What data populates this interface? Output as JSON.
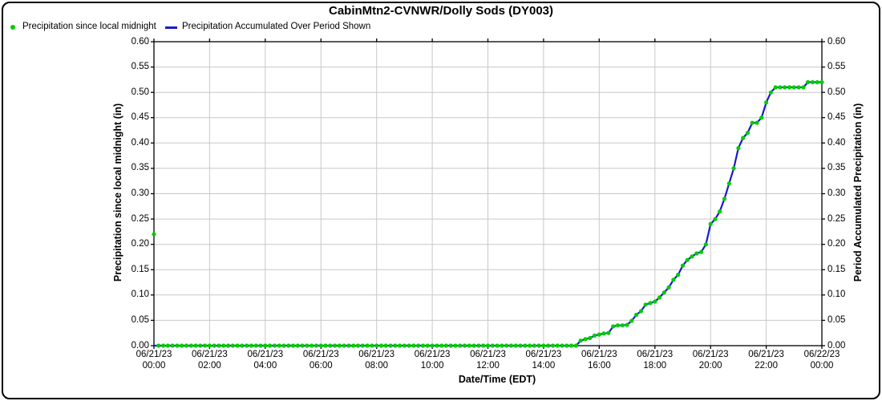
{
  "title": "CabinMtn2-CVNWR/Dolly Sods (DY003)",
  "legend": [
    {
      "label": "Precipitation since local midnight",
      "marker": "dot",
      "color": "#00cc00"
    },
    {
      "label": "Precipitation Accumulated Over Period Shown",
      "marker": "line",
      "color": "#1a1acc"
    }
  ],
  "axes": {
    "x": {
      "title": "Date/Time (EDT)",
      "tick_labels": [
        [
          "06/21/23",
          "00:00"
        ],
        [
          "06/21/23",
          "02:00"
        ],
        [
          "06/21/23",
          "04:00"
        ],
        [
          "06/21/23",
          "06:00"
        ],
        [
          "06/21/23",
          "08:00"
        ],
        [
          "06/21/23",
          "10:00"
        ],
        [
          "06/21/23",
          "12:00"
        ],
        [
          "06/21/23",
          "14:00"
        ],
        [
          "06/21/23",
          "16:00"
        ],
        [
          "06/21/23",
          "18:00"
        ],
        [
          "06/21/23",
          "20:00"
        ],
        [
          "06/21/23",
          "22:00"
        ],
        [
          "06/22/23",
          "00:00"
        ]
      ]
    },
    "y_left": {
      "title": "Precipitation since local midnight (in)",
      "min": 0.0,
      "max": 0.6,
      "step": 0.05,
      "tick_labels": [
        "0.00",
        "0.05",
        "0.10",
        "0.15",
        "0.20",
        "0.25",
        "0.30",
        "0.35",
        "0.40",
        "0.45",
        "0.50",
        "0.55",
        "0.60"
      ]
    },
    "y_right": {
      "title": "Period Accumulated Precipitation (in)",
      "min": 0.0,
      "max": 0.6,
      "step": 0.05,
      "tick_labels": [
        "0.00",
        "0.05",
        "0.10",
        "0.15",
        "0.20",
        "0.25",
        "0.30",
        "0.35",
        "0.40",
        "0.45",
        "0.50",
        "0.55",
        "0.60"
      ]
    }
  },
  "colors": {
    "grid": "#c8c8c8",
    "axis": "#000000",
    "scatter": "#00cc00",
    "line": "#1a1acc"
  },
  "chart_data": {
    "type": "line",
    "title": "CabinMtn2-CVNWR/Dolly Sods (DY003)",
    "xlabel": "Date/Time (EDT)",
    "ylabel_left": "Precipitation since local midnight (in)",
    "ylabel_right": "Period Accumulated Precipitation (in)",
    "ylim": [
      0.0,
      0.6
    ],
    "grid": true,
    "legend_position": "top-left",
    "x_start": "06/21/23 00:00",
    "x_end": "06/22/23 00:00",
    "x_step_minutes": 10,
    "series": [
      {
        "name": "Precipitation since local midnight",
        "type": "scatter",
        "color": "#00cc00",
        "values": [
          0.22,
          0,
          0,
          0,
          0,
          0,
          0,
          0,
          0,
          0,
          0,
          0,
          0,
          0,
          0,
          0,
          0,
          0,
          0,
          0,
          0,
          0,
          0,
          0,
          0,
          0,
          0,
          0,
          0,
          0,
          0,
          0,
          0,
          0,
          0,
          0,
          0,
          0,
          0,
          0,
          0,
          0,
          0,
          0,
          0,
          0,
          0,
          0,
          0,
          0,
          0,
          0,
          0,
          0,
          0,
          0,
          0,
          0,
          0,
          0,
          0,
          0,
          0,
          0,
          0,
          0,
          0,
          0,
          0,
          0,
          0,
          0,
          0,
          0,
          0,
          0,
          0,
          0,
          0,
          0,
          0,
          0,
          0,
          0,
          0,
          0,
          0,
          0,
          0,
          0,
          0,
          0,
          0.01,
          0.013,
          0.015,
          0.02,
          0.022,
          0.024,
          0.025,
          0.038,
          0.04,
          0.04,
          0.041,
          0.049,
          0.061,
          0.068,
          0.081,
          0.084,
          0.087,
          0.095,
          0.105,
          0.115,
          0.13,
          0.14,
          0.158,
          0.169,
          0.176,
          0.182,
          0.185,
          0.2,
          0.24,
          0.25,
          0.265,
          0.29,
          0.32,
          0.35,
          0.39,
          0.41,
          0.42,
          0.44,
          0.44,
          0.45,
          0.48,
          0.5,
          0.51,
          0.51,
          0.51,
          0.51,
          0.51,
          0.51,
          0.51,
          0.52,
          0.52,
          0.52,
          0.52
        ]
      },
      {
        "name": "Precipitation Accumulated Over Period Shown",
        "type": "line",
        "color": "#1a1acc",
        "values": [
          0,
          0,
          0,
          0,
          0,
          0,
          0,
          0,
          0,
          0,
          0,
          0,
          0,
          0,
          0,
          0,
          0,
          0,
          0,
          0,
          0,
          0,
          0,
          0,
          0,
          0,
          0,
          0,
          0,
          0,
          0,
          0,
          0,
          0,
          0,
          0,
          0,
          0,
          0,
          0,
          0,
          0,
          0,
          0,
          0,
          0,
          0,
          0,
          0,
          0,
          0,
          0,
          0,
          0,
          0,
          0,
          0,
          0,
          0,
          0,
          0,
          0,
          0,
          0,
          0,
          0,
          0,
          0,
          0,
          0,
          0,
          0,
          0,
          0,
          0,
          0,
          0,
          0,
          0,
          0,
          0,
          0,
          0,
          0,
          0,
          0,
          0,
          0,
          0,
          0,
          0,
          0,
          0.01,
          0.013,
          0.015,
          0.02,
          0.022,
          0.024,
          0.025,
          0.038,
          0.04,
          0.04,
          0.041,
          0.049,
          0.061,
          0.068,
          0.081,
          0.084,
          0.087,
          0.095,
          0.105,
          0.115,
          0.13,
          0.14,
          0.158,
          0.169,
          0.176,
          0.182,
          0.185,
          0.2,
          0.24,
          0.25,
          0.265,
          0.29,
          0.32,
          0.35,
          0.39,
          0.41,
          0.42,
          0.44,
          0.44,
          0.45,
          0.48,
          0.5,
          0.51,
          0.51,
          0.51,
          0.51,
          0.51,
          0.51,
          0.51,
          0.52,
          0.52,
          0.52,
          0.52
        ]
      }
    ]
  }
}
